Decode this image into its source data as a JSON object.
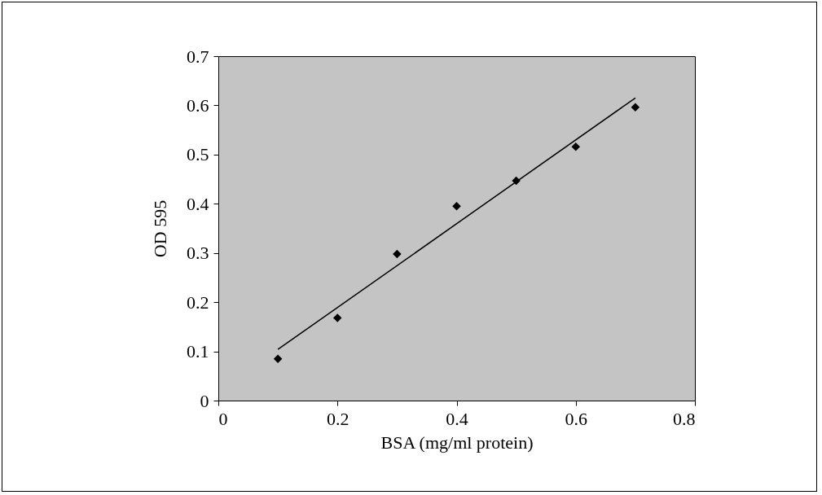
{
  "chart_data": {
    "type": "scatter",
    "xlabel": "BSA (mg/ml protein)",
    "ylabel": "OD 595",
    "x": [
      0.1,
      0.2,
      0.3,
      0.4,
      0.5,
      0.6,
      0.7
    ],
    "series": [
      {
        "color": "#000000",
        "marker": "diamond",
        "values": [
          0.085,
          0.168,
          0.298,
          0.395,
          0.447,
          0.516,
          0.596
        ]
      },
      {
        "type": "line",
        "color": "#000000",
        "line_style": "solid",
        "x": [
          0.1,
          0.7
        ],
        "values": [
          0.104,
          0.615
        ]
      }
    ],
    "xlim": [
      0,
      0.8
    ],
    "xticks": [
      0,
      0.2,
      0.4,
      0.6,
      0.8
    ],
    "ylim": [
      0,
      0.7
    ],
    "yticks": [
      0,
      0.1,
      0.2,
      0.3,
      0.4,
      0.5,
      0.6,
      0.7
    ],
    "grid": false
  }
}
